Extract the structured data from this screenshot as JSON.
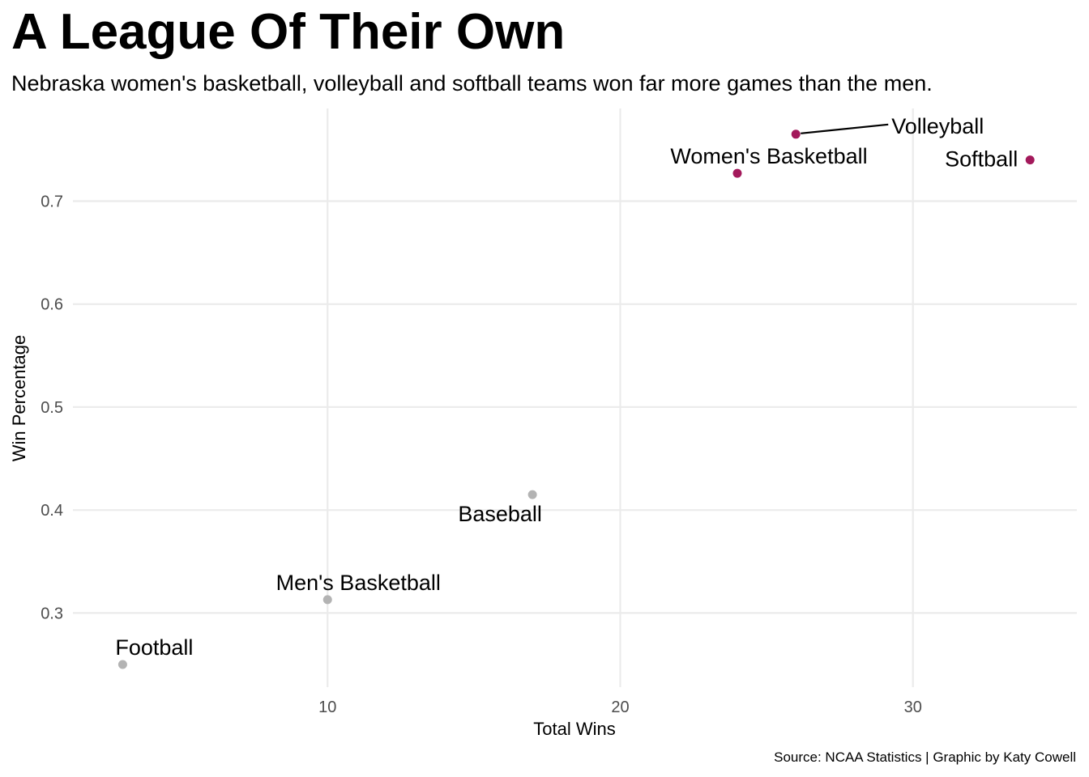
{
  "chart_data": {
    "type": "scatter",
    "title": "A League Of Their Own",
    "subtitle": "Nebraska women's basketball, volleyball and softball teams won far more games than the men.",
    "caption": "Source: NCAA Statistics | Graphic by Katy Cowell",
    "xlabel": "Total Wins",
    "ylabel": "Win Percentage",
    "xlim": [
      1.3,
      35.6
    ],
    "ylim": [
      0.228,
      0.79
    ],
    "xticks": [
      10,
      20,
      30
    ],
    "yticks": [
      0.3,
      0.4,
      0.5,
      0.6,
      0.7
    ],
    "xtick_labels": [
      "10",
      "20",
      "30"
    ],
    "ytick_labels": [
      "0.3",
      "0.4",
      "0.5",
      "0.6",
      "0.7"
    ],
    "grid": true,
    "colors": {
      "women": "#a3195b",
      "men": "#b3b3b3",
      "grid": "#ebebeb"
    },
    "points": [
      {
        "label": "Football",
        "x": 3,
        "y": 0.25,
        "group": "men"
      },
      {
        "label": "Men's Basketball",
        "x": 10,
        "y": 0.313,
        "group": "men"
      },
      {
        "label": "Baseball",
        "x": 17,
        "y": 0.415,
        "group": "men"
      },
      {
        "label": "Women's Basketball",
        "x": 24,
        "y": 0.727,
        "group": "women"
      },
      {
        "label": "Volleyball",
        "x": 26,
        "y": 0.765,
        "group": "women"
      },
      {
        "label": "Softball",
        "x": 34,
        "y": 0.74,
        "group": "women"
      }
    ]
  }
}
